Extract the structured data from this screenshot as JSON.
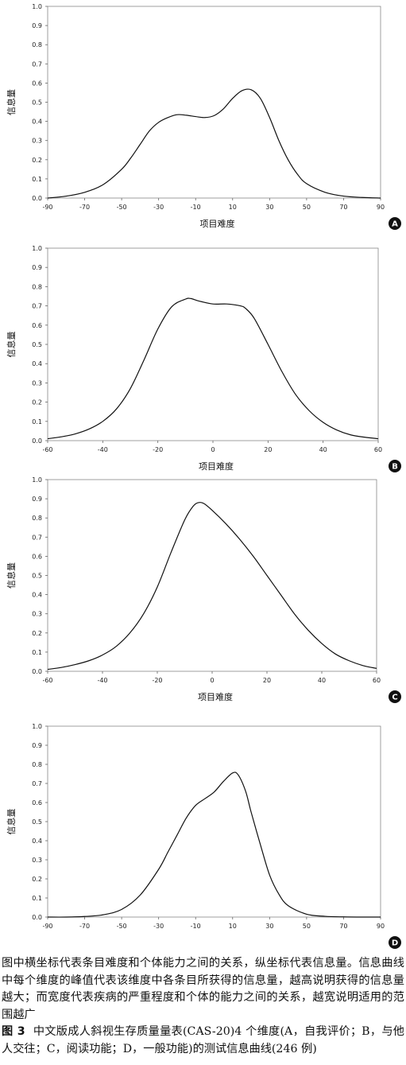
{
  "chart_data": [
    {
      "type": "line",
      "panel_label": "A",
      "xlabel": "项目难度",
      "ylabel": "信息量",
      "xlim": [
        -90,
        90
      ],
      "ylim": [
        0,
        1.0
      ],
      "x_ticks": [
        "-90",
        "-70",
        "-50",
        "-30",
        "-10",
        "10",
        "30",
        "50",
        "70",
        "90"
      ],
      "y_ticks": [
        "0.0",
        "0.1",
        "0.2",
        "0.3",
        "0.4",
        "0.5",
        "0.6",
        "0.7",
        "0.8",
        "0.9",
        "1.0"
      ],
      "grid": false,
      "series": [
        {
          "x": [
            -90,
            -80,
            -70,
            -60,
            -50,
            -45,
            -40,
            -35,
            -30,
            -25,
            -20,
            -15,
            -10,
            -5,
            0,
            5,
            10,
            15,
            20,
            25,
            30,
            35,
            40,
            45,
            50,
            60,
            70,
            80,
            90
          ],
          "y": [
            0.0,
            0.01,
            0.03,
            0.07,
            0.15,
            0.21,
            0.28,
            0.35,
            0.395,
            0.42,
            0.435,
            0.432,
            0.425,
            0.42,
            0.43,
            0.465,
            0.52,
            0.56,
            0.565,
            0.52,
            0.42,
            0.3,
            0.2,
            0.125,
            0.075,
            0.03,
            0.01,
            0.003,
            0.0
          ]
        }
      ]
    },
    {
      "type": "line",
      "panel_label": "B",
      "xlabel": "项目难度",
      "ylabel": "信息量",
      "xlim": [
        -60,
        60
      ],
      "ylim": [
        0,
        1.0
      ],
      "x_ticks": [
        "-60",
        "-40",
        "-20",
        "0",
        "20",
        "40",
        "60"
      ],
      "y_ticks": [
        "0.0",
        "0.1",
        "0.2",
        "0.3",
        "0.4",
        "0.5",
        "0.6",
        "0.7",
        "0.8",
        "0.9",
        "1.0"
      ],
      "grid": false,
      "series": [
        {
          "x": [
            -60,
            -55,
            -50,
            -45,
            -40,
            -35,
            -30,
            -25,
            -20,
            -15,
            -10,
            -8,
            -5,
            0,
            5,
            10,
            12,
            15,
            20,
            25,
            30,
            35,
            40,
            45,
            50,
            55,
            60
          ],
          "y": [
            0.01,
            0.02,
            0.035,
            0.06,
            0.1,
            0.165,
            0.27,
            0.42,
            0.58,
            0.695,
            0.735,
            0.738,
            0.725,
            0.71,
            0.71,
            0.7,
            0.685,
            0.635,
            0.5,
            0.36,
            0.24,
            0.155,
            0.095,
            0.055,
            0.03,
            0.018,
            0.01
          ]
        }
      ]
    },
    {
      "type": "line",
      "panel_label": "C",
      "xlabel": "项目难度",
      "ylabel": "信息量",
      "xlim": [
        -60,
        60
      ],
      "ylim": [
        0,
        1.0
      ],
      "x_ticks": [
        "-60",
        "-40",
        "-20",
        "0",
        "20",
        "40",
        "60"
      ],
      "y_ticks": [
        "0.0",
        "0.1",
        "0.2",
        "0.3",
        "0.4",
        "0.5",
        "0.6",
        "0.7",
        "0.8",
        "0.9",
        "1.0"
      ],
      "grid": false,
      "series": [
        {
          "x": [
            -60,
            -55,
            -50,
            -45,
            -40,
            -35,
            -30,
            -25,
            -20,
            -15,
            -10,
            -7,
            -5,
            -3,
            0,
            5,
            10,
            15,
            20,
            25,
            30,
            35,
            40,
            45,
            50,
            55,
            60
          ],
          "y": [
            0.01,
            0.02,
            0.035,
            0.055,
            0.085,
            0.13,
            0.2,
            0.3,
            0.44,
            0.62,
            0.79,
            0.86,
            0.88,
            0.875,
            0.84,
            0.77,
            0.69,
            0.6,
            0.5,
            0.4,
            0.3,
            0.215,
            0.145,
            0.09,
            0.055,
            0.03,
            0.015
          ]
        }
      ]
    },
    {
      "type": "line",
      "panel_label": "D",
      "xlabel": "",
      "ylabel": "信息量",
      "xlim": [
        -90,
        90
      ],
      "ylim": [
        0,
        1.0
      ],
      "x_ticks": [
        "-90",
        "-70",
        "-50",
        "-30",
        "-10",
        "10",
        "30",
        "50",
        "70",
        "90"
      ],
      "y_ticks": [
        "0.0",
        "0.1",
        "0.2",
        "0.3",
        "0.4",
        "0.5",
        "0.6",
        "0.7",
        "0.8",
        "0.9",
        "1.0"
      ],
      "grid": false,
      "series": [
        {
          "x": [
            -90,
            -80,
            -70,
            -60,
            -50,
            -40,
            -30,
            -25,
            -20,
            -15,
            -10,
            -5,
            0,
            5,
            10,
            13,
            17,
            20,
            25,
            30,
            35,
            40,
            50,
            60,
            70,
            80,
            90
          ],
          "y": [
            0.0,
            0.0,
            0.003,
            0.012,
            0.04,
            0.115,
            0.25,
            0.34,
            0.43,
            0.52,
            0.585,
            0.62,
            0.655,
            0.71,
            0.755,
            0.745,
            0.66,
            0.55,
            0.38,
            0.22,
            0.12,
            0.06,
            0.015,
            0.004,
            0.001,
            0.0,
            0.0
          ]
        }
      ]
    }
  ],
  "caption": {
    "note": "图中横坐标代表条目难度和个体能力之间的关系，纵坐标代表信息量。信息曲线中每个维度的峰值代表该维度中各条目所获得的信息量，越高说明获得的信息量越大；而宽度代表疾病的严重程度和个体的能力之间的关系，越宽说明适用的范围越广",
    "figure_label": "图 3",
    "title": "中文版成人斜视生存质量量表(CAS-20)4 个维度(A，自我评价；B，与他人交往；C，阅读功能；D，一般功能)的测试信息曲线(246 例)"
  }
}
